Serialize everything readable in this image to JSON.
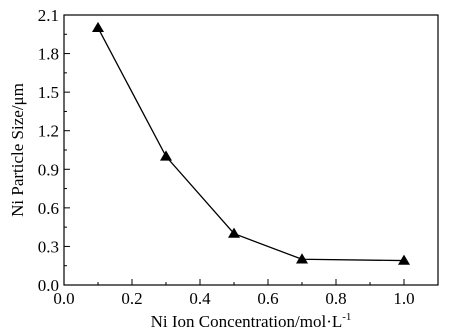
{
  "chart_data": {
    "type": "line",
    "title": "",
    "xlabel": "Ni Ion Concentration/mol·L",
    "xlabel_superscript": "-1",
    "ylabel": "Ni Particle Size/μm",
    "xlim": [
      0.0,
      1.1
    ],
    "ylim": [
      0.0,
      2.1
    ],
    "xticks": [
      "0.0",
      "0.2",
      "0.4",
      "0.6",
      "0.8",
      "1.0"
    ],
    "yticks": [
      "0.0",
      "0.3",
      "0.6",
      "0.9",
      "1.2",
      "1.5",
      "1.8",
      "2.1"
    ],
    "grid": false,
    "legend": "none",
    "marker": "triangle",
    "color": "#000000",
    "series": [
      {
        "x": [
          0.1,
          0.3,
          0.5,
          0.7,
          1.0
        ],
        "y": [
          2.0,
          1.0,
          0.4,
          0.2,
          0.19
        ]
      }
    ]
  }
}
